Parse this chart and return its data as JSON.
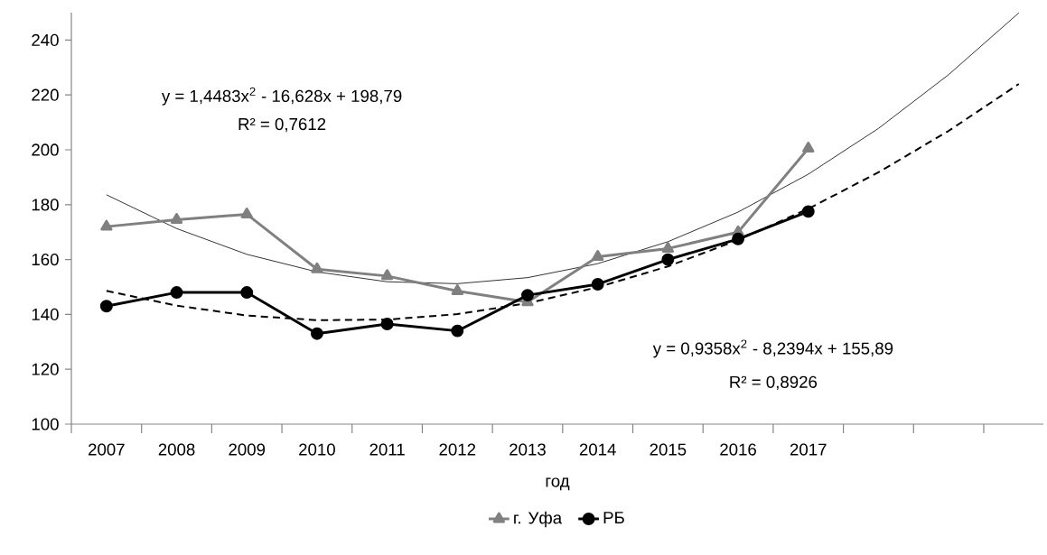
{
  "chart_data": {
    "type": "line",
    "xlabel": "год",
    "categories": [
      "2007",
      "2008",
      "2009",
      "2010",
      "2011",
      "2012",
      "2013",
      "2014",
      "2015",
      "2016",
      "2017",
      null,
      null,
      null
    ],
    "series": [
      {
        "name": "г. Уфа",
        "color": "#808080",
        "marker": "triangle",
        "line_style": "solid",
        "values": [
          172,
          174.5,
          176.5,
          156.5,
          154,
          148.5,
          144.5,
          161,
          164,
          170,
          200.5,
          null,
          null,
          null
        ]
      },
      {
        "name": "РБ",
        "color": "#000000",
        "marker": "circle",
        "line_style": "solid",
        "values": [
          143,
          148,
          148,
          133,
          136.5,
          134,
          147,
          151,
          160,
          167.5,
          177.5,
          null,
          null,
          null
        ]
      },
      {
        "type": "line",
        "color": "#000000",
        "marker": "none",
        "line_style": "solid",
        "values": [
          183.6,
          171.3,
          161.9,
          155.5,
          151.9,
          151.2,
          153.4,
          158.5,
          166.5,
          177.3,
          191.1,
          207.8,
          227.4,
          249.9
        ]
      },
      {
        "type": "line",
        "color": "#000000",
        "marker": "none",
        "line_style": "dashed",
        "values": [
          148.6,
          143.2,
          139.6,
          137.9,
          138.1,
          140.1,
          144.1,
          149.9,
          157.5,
          167.1,
          178.5,
          191.8,
          206.9,
          224.0
        ]
      }
    ],
    "ylim": [
      100,
      250
    ],
    "yticks": [
      100,
      120,
      140,
      160,
      180,
      200,
      220,
      240
    ],
    "legend": "bottom",
    "annotations": [
      "y = 1,4483x$^{2}$ - 16,628x + 198,79",
      "R² = 0,7612",
      "y = 0,9358x$^{2}$ - 8,2394x + 155,89",
      "R² = 0,8926"
    ]
  }
}
